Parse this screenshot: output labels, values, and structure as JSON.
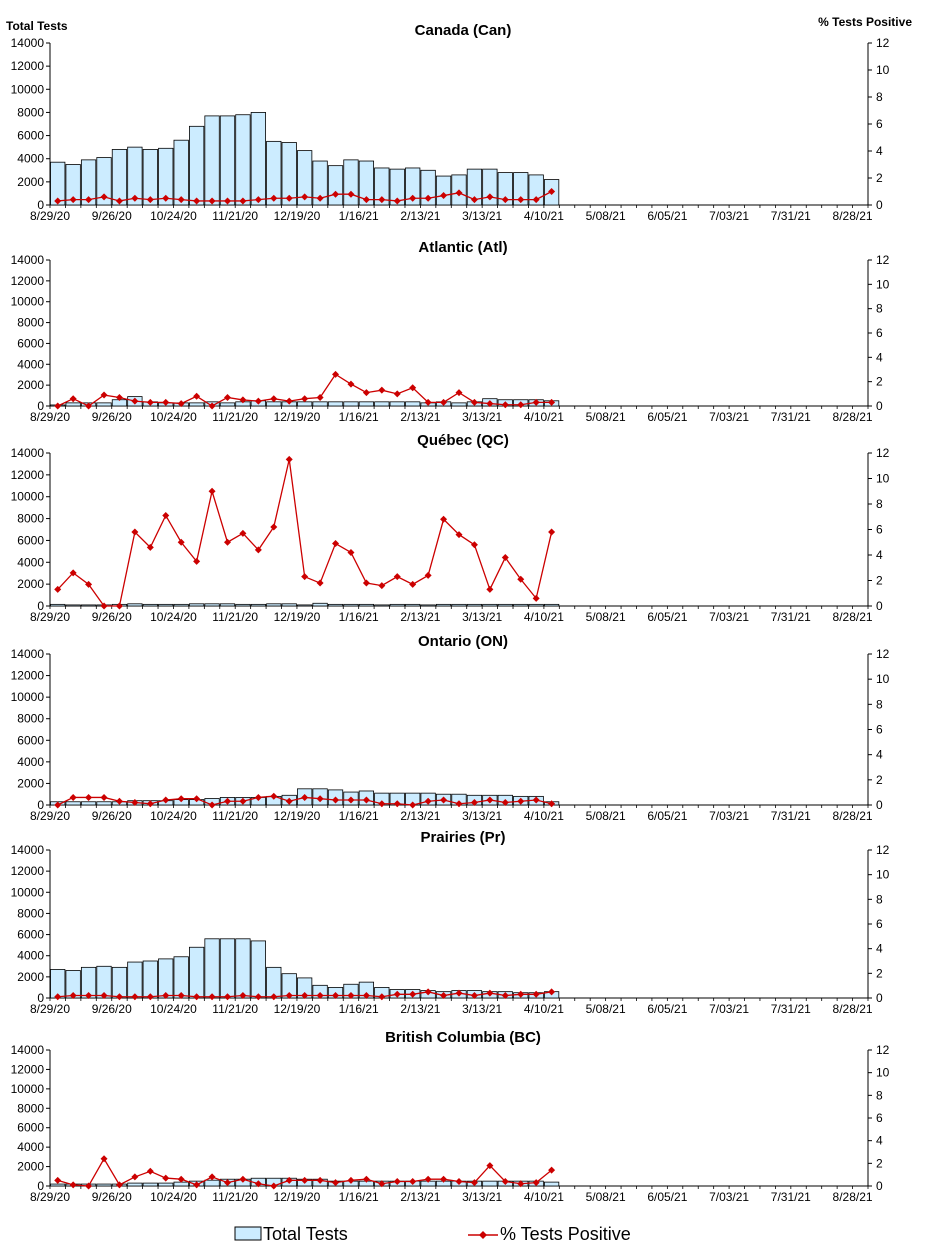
{
  "chart_data": {
    "type": "bar",
    "bar_color": "#CCECFF",
    "line_color": "#CC0000",
    "y_left_label": "Total Tests",
    "y_right_label": "% Tests Positive",
    "x_tick_labels": [
      "8/29/20",
      "9/26/20",
      "10/24/20",
      "11/21/20",
      "12/19/20",
      "1/16/21",
      "2/13/21",
      "3/13/21",
      "4/10/21",
      "5/08/21",
      "6/05/21",
      "7/03/21",
      "7/31/21",
      "8/28/21"
    ],
    "weeks_total": 53,
    "ylim_left": [
      0,
      14000
    ],
    "y_left_ticks": [
      "0",
      "2000",
      "4000",
      "6000",
      "8000",
      "10000",
      "12000",
      "14000"
    ],
    "ylim_right": [
      0,
      12
    ],
    "y_right_ticks": [
      "0",
      "2",
      "4",
      "6",
      "8",
      "10",
      "12"
    ],
    "legend": {
      "bars": "Total Tests",
      "line": "% Tests Positive"
    },
    "panels": [
      {
        "title": "Canada (Can)",
        "tests": [
          3700,
          3500,
          3900,
          4100,
          4800,
          5000,
          4800,
          4900,
          5600,
          6800,
          7700,
          7700,
          7800,
          8000,
          5500,
          5400,
          4700,
          3800,
          3400,
          3900,
          3800,
          3200,
          3100,
          3200,
          3000,
          2500,
          2600,
          3100,
          3100,
          2800,
          2800,
          2600,
          2200
        ],
        "pct": [
          0.3,
          0.4,
          0.4,
          0.6,
          0.3,
          0.5,
          0.4,
          0.5,
          0.4,
          0.3,
          0.3,
          0.3,
          0.3,
          0.4,
          0.5,
          0.5,
          0.6,
          0.5,
          0.8,
          0.8,
          0.4,
          0.4,
          0.3,
          0.5,
          0.5,
          0.7,
          0.9,
          0.4,
          0.6,
          0.4,
          0.4,
          0.4,
          1.0
        ]
      },
      {
        "title": "Atlantic (Atl)",
        "tests": [
          100,
          300,
          300,
          300,
          600,
          900,
          400,
          300,
          300,
          300,
          400,
          300,
          400,
          500,
          400,
          400,
          400,
          400,
          400,
          400,
          400,
          400,
          400,
          400,
          300,
          400,
          300,
          400,
          700,
          600,
          600,
          600,
          500
        ],
        "pct": [
          0.0,
          0.6,
          0.0,
          0.9,
          0.7,
          0.4,
          0.3,
          0.3,
          0.2,
          0.8,
          0.0,
          0.7,
          0.5,
          0.4,
          0.6,
          0.4,
          0.6,
          0.7,
          2.6,
          1.8,
          1.1,
          1.3,
          1.0,
          1.5,
          0.3,
          0.3,
          1.1,
          0.3,
          0.2,
          0.1,
          0.1,
          0.3,
          0.3
        ]
      },
      {
        "title": "Québec (QC)",
        "tests": [
          150,
          100,
          100,
          100,
          150,
          200,
          150,
          150,
          150,
          200,
          200,
          200,
          150,
          150,
          200,
          200,
          100,
          250,
          150,
          150,
          150,
          100,
          150,
          150,
          100,
          150,
          150,
          150,
          150,
          150,
          150,
          150,
          150
        ],
        "pct": [
          1.3,
          2.6,
          1.7,
          0.0,
          0.0,
          5.8,
          4.6,
          7.1,
          5.0,
          3.5,
          9.0,
          5.0,
          5.7,
          4.4,
          6.2,
          11.5,
          2.3,
          1.8,
          4.9,
          4.2,
          1.8,
          1.6,
          2.3,
          1.7,
          2.4,
          6.8,
          5.6,
          4.8,
          1.3,
          3.8,
          2.1,
          0.6,
          5.8
        ]
      },
      {
        "title": "Ontario (ON)",
        "tests": [
          300,
          300,
          300,
          300,
          300,
          400,
          400,
          400,
          500,
          500,
          600,
          700,
          700,
          700,
          800,
          900,
          1500,
          1500,
          1400,
          1200,
          1300,
          1100,
          1100,
          1100,
          1100,
          1000,
          1000,
          900,
          900,
          900,
          800,
          800,
          300
        ],
        "pct": [
          0.0,
          0.6,
          0.6,
          0.6,
          0.3,
          0.2,
          0.1,
          0.4,
          0.5,
          0.5,
          0.0,
          0.3,
          0.3,
          0.6,
          0.7,
          0.3,
          0.6,
          0.5,
          0.4,
          0.4,
          0.4,
          0.1,
          0.1,
          0.0,
          0.3,
          0.4,
          0.1,
          0.2,
          0.4,
          0.2,
          0.3,
          0.4,
          0.1
        ]
      },
      {
        "title": "Prairies (Pr)",
        "tests": [
          2700,
          2600,
          2900,
          3000,
          2900,
          3400,
          3500,
          3700,
          3900,
          4800,
          5600,
          5600,
          5600,
          5400,
          2900,
          2300,
          1900,
          1200,
          1000,
          1300,
          1500,
          1000,
          800,
          800,
          700,
          600,
          700,
          700,
          600,
          600,
          500,
          500,
          600
        ],
        "pct": [
          0.1,
          0.2,
          0.2,
          0.2,
          0.1,
          0.1,
          0.1,
          0.2,
          0.2,
          0.1,
          0.1,
          0.1,
          0.2,
          0.1,
          0.1,
          0.2,
          0.2,
          0.2,
          0.2,
          0.2,
          0.2,
          0.1,
          0.3,
          0.3,
          0.5,
          0.2,
          0.4,
          0.2,
          0.4,
          0.2,
          0.3,
          0.3,
          0.5
        ]
      },
      {
        "title": "British Columbia (BC)",
        "tests": [
          200,
          200,
          200,
          200,
          200,
          300,
          300,
          300,
          400,
          500,
          600,
          700,
          700,
          800,
          800,
          800,
          700,
          700,
          500,
          500,
          500,
          500,
          500,
          500,
          500,
          500,
          500,
          500,
          500,
          500,
          500,
          500,
          400
        ],
        "pct": [
          0.5,
          0.1,
          0.0,
          2.4,
          0.1,
          0.8,
          1.3,
          0.7,
          0.6,
          0.1,
          0.8,
          0.3,
          0.6,
          0.2,
          0.0,
          0.5,
          0.5,
          0.5,
          0.3,
          0.5,
          0.6,
          0.2,
          0.4,
          0.4,
          0.6,
          0.6,
          0.4,
          0.3,
          1.8,
          0.4,
          0.2,
          0.3,
          1.4
        ]
      }
    ]
  }
}
